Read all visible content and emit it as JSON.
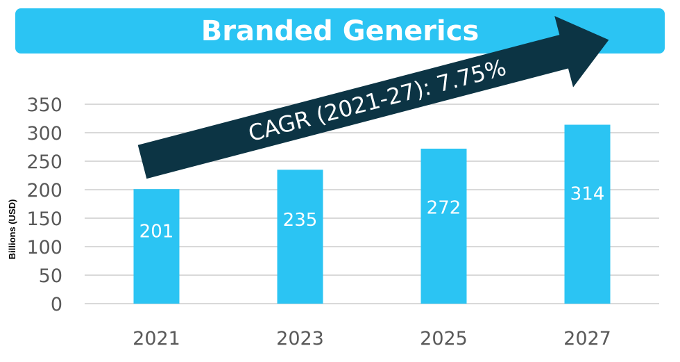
{
  "chart_data": {
    "type": "bar",
    "title": "Branded Generics",
    "ylabel": "Billions (USD)",
    "xlabel": "",
    "categories": [
      "2021",
      "2023",
      "2025",
      "2027"
    ],
    "values": [
      201,
      235,
      272,
      314
    ],
    "ylim": [
      0,
      350
    ],
    "yticks": [
      0,
      50,
      100,
      150,
      200,
      250,
      300,
      350
    ],
    "grid": true,
    "annotation": "CAGR (2021-27): 7.75%",
    "colors": {
      "bar": "#2bc4f3",
      "title_bg": "#2bc4f3",
      "arrow": "#0c3444",
      "grid": "#d9d9d9",
      "text": "#595959"
    }
  }
}
